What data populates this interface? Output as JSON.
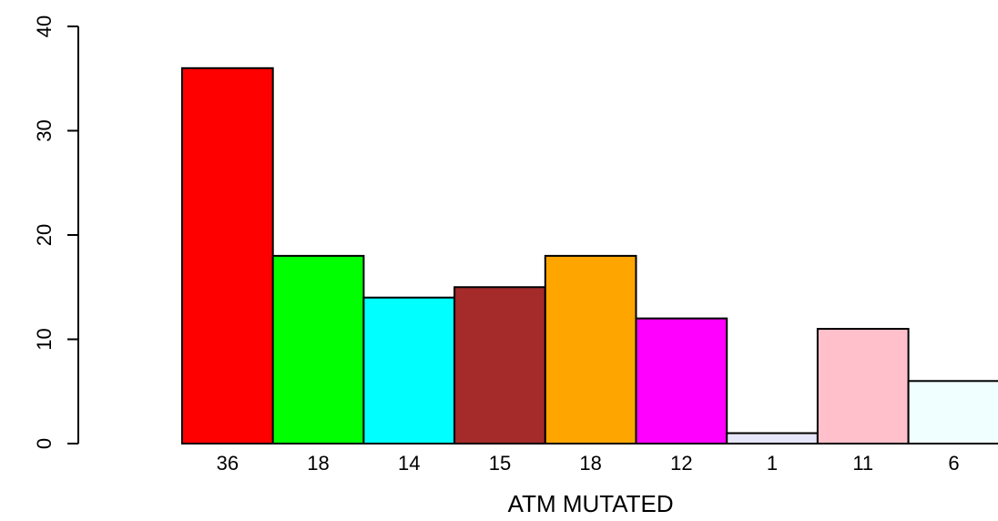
{
  "chart_data": {
    "type": "bar",
    "title": "",
    "xlabel": "ATM MUTATED",
    "ylabel": "",
    "ylim": [
      0,
      40
    ],
    "yticks": [
      0,
      10,
      20,
      30,
      40
    ],
    "grid": false,
    "categories": [
      "36",
      "18",
      "14",
      "15",
      "18",
      "12",
      "1",
      "11",
      "6"
    ],
    "values": [
      36,
      18,
      14,
      15,
      18,
      12,
      1,
      11,
      6
    ],
    "colors": [
      "#ff0000",
      "#00ff00",
      "#00ffff",
      "#a52a2a",
      "#ffa500",
      "#ff00ff",
      "#e6e6fa",
      "#ffc0cb",
      "#f0ffff"
    ]
  }
}
